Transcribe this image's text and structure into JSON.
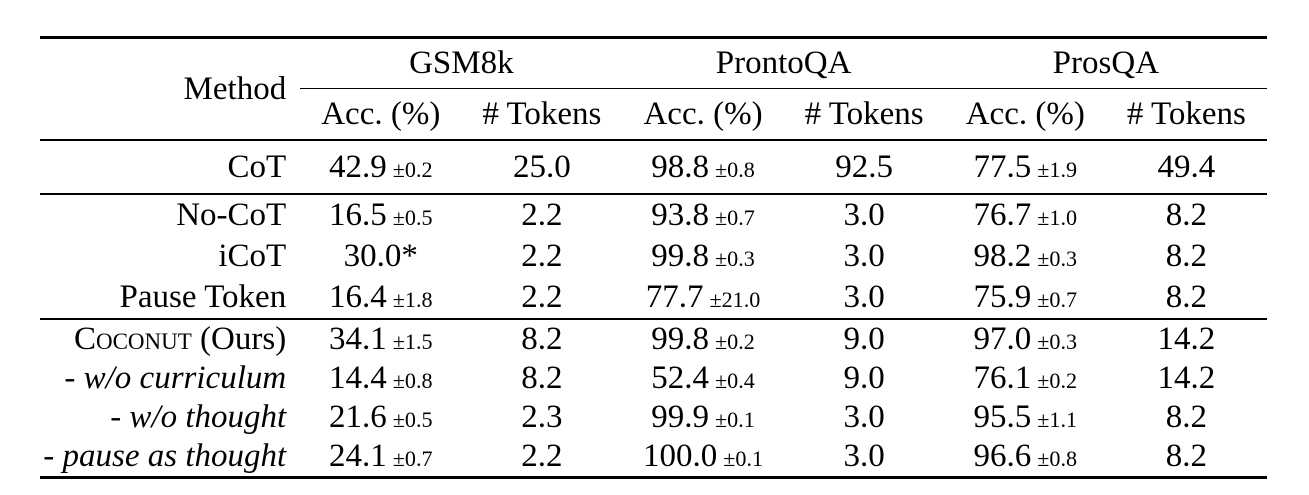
{
  "page": {
    "background_color": "#ffffff",
    "text_color": "#000000",
    "rule_color": "#000000"
  },
  "table": {
    "method_header": "Method",
    "groups": [
      {
        "label": "GSM8k",
        "sub_headers": [
          "Acc. (%)",
          "# Tokens"
        ]
      },
      {
        "label": "ProntoQA",
        "sub_headers": [
          "Acc. (%)",
          "# Tokens"
        ]
      },
      {
        "label": "ProsQA",
        "sub_headers": [
          "Acc. (%)",
          "# Tokens"
        ]
      }
    ],
    "sections": [
      {
        "rows": [
          {
            "label": "CoT",
            "label_style": "normal",
            "cells": [
              {
                "v": "42.9",
                "pm": "±0.2"
              },
              {
                "v": "25.0"
              },
              {
                "v": "98.8",
                "pm": "±0.8"
              },
              {
                "v": "92.5"
              },
              {
                "v": "77.5",
                "pm": "±1.9"
              },
              {
                "v": "49.4"
              }
            ]
          }
        ]
      },
      {
        "rows": [
          {
            "label": "No-CoT",
            "label_style": "normal",
            "cells": [
              {
                "v": "16.5",
                "pm": "±0.5"
              },
              {
                "v": "2.2"
              },
              {
                "v": "93.8",
                "pm": "±0.7"
              },
              {
                "v": "3.0"
              },
              {
                "v": "76.7",
                "pm": "±1.0"
              },
              {
                "v": "8.2"
              }
            ]
          },
          {
            "label": "iCoT",
            "label_style": "normal",
            "cells": [
              {
                "v": "30.0*"
              },
              {
                "v": "2.2"
              },
              {
                "v": "99.8",
                "pm": "±0.3"
              },
              {
                "v": "3.0"
              },
              {
                "v": "98.2",
                "pm": "±0.3"
              },
              {
                "v": "8.2"
              }
            ]
          },
          {
            "label": "Pause Token",
            "label_style": "normal",
            "cells": [
              {
                "v": "16.4",
                "pm": "±1.8"
              },
              {
                "v": "2.2"
              },
              {
                "v": "77.7",
                "pm": "±21.0"
              },
              {
                "v": "3.0"
              },
              {
                "v": "75.9",
                "pm": "±0.7"
              },
              {
                "v": "8.2"
              }
            ]
          }
        ]
      },
      {
        "rows": [
          {
            "label": "Coconut",
            "label_suffix": " (Ours)",
            "label_style": "smallcaps",
            "cells": [
              {
                "v": "34.1",
                "pm": "±1.5"
              },
              {
                "v": "8.2"
              },
              {
                "v": "99.8",
                "pm": "±0.2"
              },
              {
                "v": "9.0"
              },
              {
                "v": "97.0",
                "pm": "±0.3"
              },
              {
                "v": "14.2"
              }
            ]
          },
          {
            "label": "- w/o curriculum",
            "label_style": "italic",
            "cells": [
              {
                "v": "14.4",
                "pm": "±0.8"
              },
              {
                "v": "8.2"
              },
              {
                "v": "52.4",
                "pm": "±0.4"
              },
              {
                "v": "9.0"
              },
              {
                "v": "76.1",
                "pm": "±0.2"
              },
              {
                "v": "14.2"
              }
            ]
          },
          {
            "label": "- w/o thought",
            "label_style": "italic",
            "cells": [
              {
                "v": "21.6",
                "pm": "±0.5"
              },
              {
                "v": "2.3"
              },
              {
                "v": "99.9",
                "pm": "±0.1"
              },
              {
                "v": "3.0"
              },
              {
                "v": "95.5",
                "pm": "±1.1"
              },
              {
                "v": "8.2"
              }
            ]
          },
          {
            "label": "- pause as thought",
            "label_style": "italic",
            "cells": [
              {
                "v": "24.1",
                "pm": "±0.7"
              },
              {
                "v": "2.2"
              },
              {
                "v": "100.0",
                "pm": "±0.1"
              },
              {
                "v": "3.0"
              },
              {
                "v": "96.6",
                "pm": "±0.8"
              },
              {
                "v": "8.2"
              }
            ]
          }
        ]
      }
    ]
  }
}
